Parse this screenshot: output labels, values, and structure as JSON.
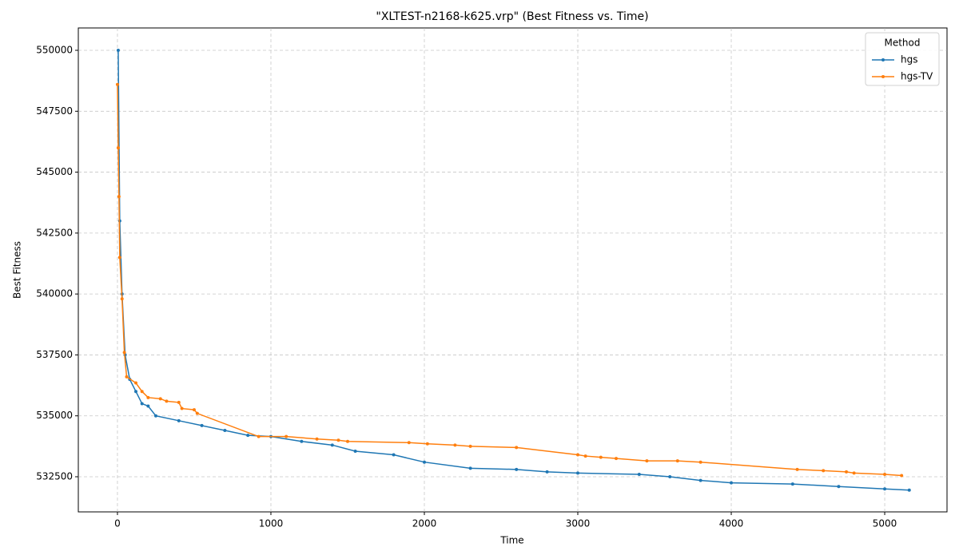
{
  "chart_data": {
    "type": "line",
    "title": "\"XLTEST-n2168-k625.vrp\" (Best Fitness vs. Time)",
    "x_label": "Time",
    "y_label": "Best Fitness",
    "legend_title": "Method",
    "legend_position": "upper right",
    "grid": true,
    "xlim": [
      -255,
      5406
    ],
    "xticks": [
      0,
      1000,
      2000,
      3000,
      4000,
      5000
    ],
    "ylim": [
      531058,
      550918
    ],
    "yticks": [
      532500,
      535000,
      537500,
      540000,
      542500,
      545000,
      547500,
      550000
    ],
    "series": [
      {
        "name": "hgs",
        "color": "#1f77b4",
        "x": [
          5,
          15,
          30,
          50,
          80,
          120,
          160,
          200,
          250,
          400,
          550,
          700,
          850,
          1000,
          1200,
          1400,
          1550,
          1800,
          2000,
          2300,
          2600,
          2800,
          3000,
          3400,
          3600,
          3800,
          4000,
          4400,
          4700,
          5000,
          5160
        ],
        "values": [
          550000,
          543000,
          540000,
          537500,
          536500,
          536000,
          535500,
          535400,
          535000,
          534800,
          534600,
          534400,
          534200,
          534150,
          533950,
          533800,
          533550,
          533400,
          533100,
          532850,
          532800,
          532700,
          532650,
          532600,
          532500,
          532350,
          532250,
          532200,
          532100,
          532000,
          531950
        ]
      },
      {
        "name": "hgs-TV",
        "color": "#ff7f0e",
        "x": [
          0,
          5,
          10,
          15,
          30,
          45,
          60,
          120,
          160,
          200,
          280,
          320,
          400,
          420,
          500,
          520,
          920,
          1100,
          1300,
          1440,
          1500,
          1900,
          2020,
          2200,
          2300,
          2600,
          3000,
          3050,
          3150,
          3250,
          3450,
          3650,
          3800,
          4430,
          4600,
          4750,
          4800,
          5000,
          5110
        ],
        "values": [
          548600,
          546000,
          544000,
          541500,
          539800,
          537600,
          536600,
          536350,
          536000,
          535750,
          535700,
          535600,
          535550,
          535300,
          535250,
          535100,
          534150,
          534150,
          534050,
          534000,
          533950,
          533900,
          533850,
          533800,
          533750,
          533700,
          533400,
          533350,
          533300,
          533250,
          533150,
          533150,
          533100,
          532800,
          532750,
          532700,
          532650,
          532600,
          532550
        ]
      }
    ]
  }
}
